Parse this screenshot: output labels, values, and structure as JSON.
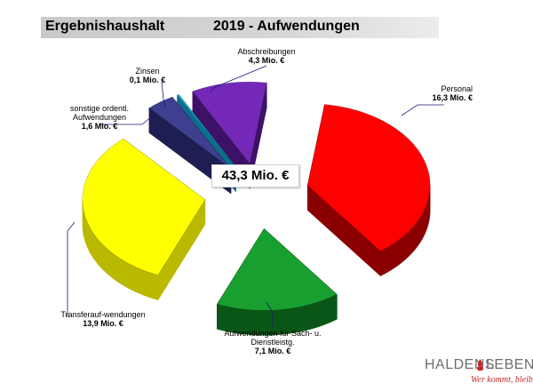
{
  "title": {
    "left": "Ergebnishaushalt",
    "right": "2019  - Aufwendungen"
  },
  "chart_data": {
    "type": "pie",
    "total_label": "43,3 Mio. €",
    "unit": "Mio. €",
    "slices": [
      {
        "name": "Personal",
        "value": 16.3,
        "value_label": "16,3 Mio. €",
        "color": "#ff0000",
        "side_color": "#8a0000"
      },
      {
        "name": "Aufwendungen für  Sach- u. Dienstleistg.",
        "value": 7.1,
        "value_label": "7,1 Mio. €",
        "color": "#17a02f",
        "side_color": "#0a5616"
      },
      {
        "name": "Transferauf-wendungen",
        "value": 13.9,
        "value_label": "13,9 Mio. €",
        "color": "#ffff00",
        "side_color": "#b9b900"
      },
      {
        "name": "sonstige ordentl. Aufwendungen",
        "value": 1.6,
        "value_label": "1,6 Mio. €",
        "color": "#3f3f8f",
        "side_color": "#1e1e52"
      },
      {
        "name": "Zinsen",
        "value": 0.1,
        "value_label": "0,1 Mio. €",
        "color": "#19b6e6",
        "side_color": "#0b6f8c"
      },
      {
        "name": "Abschreibungen",
        "value": 4.3,
        "value_label": "4,3 Mio. €",
        "color": "#7428b8",
        "side_color": "#3d1266"
      }
    ],
    "legend": "none",
    "grid": false
  },
  "logo": {
    "main_a": "HALDENS",
    "main_b": "LEBEN",
    "tagline": "Wer kommt, bleibt"
  }
}
